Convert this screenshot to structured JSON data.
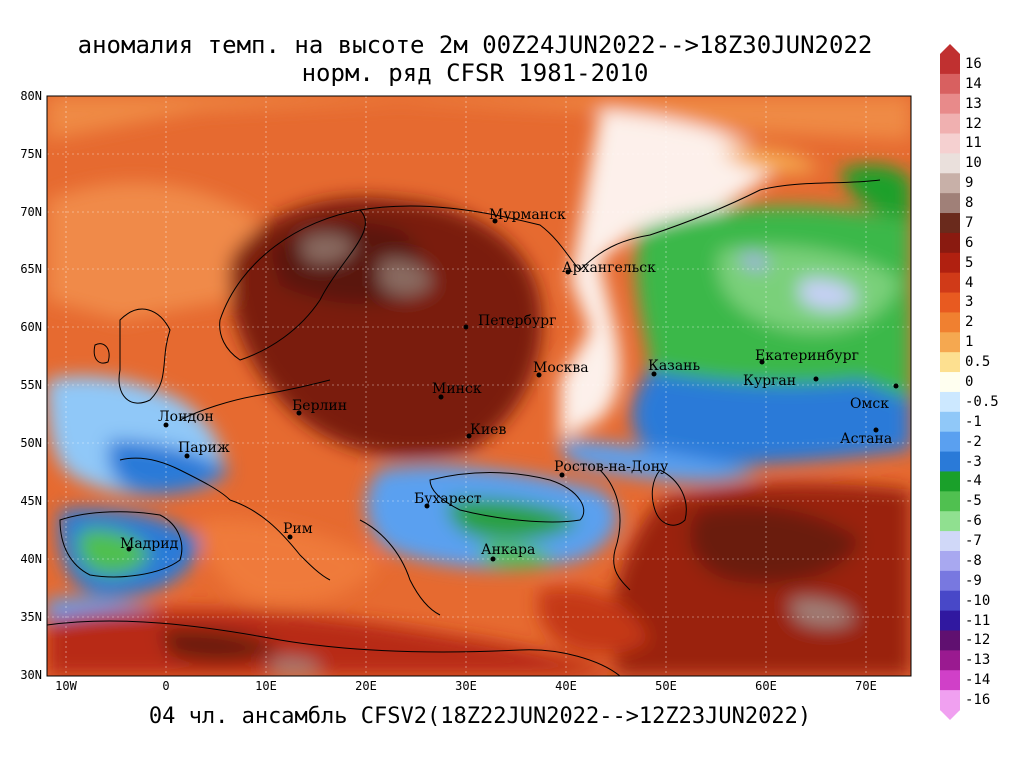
{
  "title_line1": "аномалия темп. на высоте 2м 00Z24JUN2022-->18Z30JUN2022",
  "title_line2": "норм. ряд CFSR 1981-2010",
  "footer": "04 чл. ансамбль CFSV2(18Z22JUN2022-->12Z23JUN2022)",
  "lat_labels": [
    "80N",
    "75N",
    "70N",
    "65N",
    "60N",
    "55N",
    "50N",
    "45N",
    "40N",
    "35N",
    "30N"
  ],
  "lon_labels": [
    "10W",
    "0",
    "10E",
    "20E",
    "30E",
    "40E",
    "50E",
    "60E",
    "70E"
  ],
  "cities": [
    {
      "name": "Мурманск"
    },
    {
      "name": "Архангельск"
    },
    {
      "name": "Петербург"
    },
    {
      "name": "Москва"
    },
    {
      "name": "Казань"
    },
    {
      "name": "Екатеринбург"
    },
    {
      "name": "Курган"
    },
    {
      "name": "Омск"
    },
    {
      "name": "Астана"
    },
    {
      "name": "Лондон"
    },
    {
      "name": "Париж"
    },
    {
      "name": "Берлин"
    },
    {
      "name": "Минск"
    },
    {
      "name": "Киев"
    },
    {
      "name": "Ростов-на-Дону"
    },
    {
      "name": "Бухарест"
    },
    {
      "name": "Рим"
    },
    {
      "name": "Мадрид"
    },
    {
      "name": "Анкара"
    }
  ],
  "legend": {
    "labels": [
      "16",
      "14",
      "13",
      "12",
      "11",
      "10",
      "9",
      "8",
      "7",
      "6",
      "5",
      "4",
      "3",
      "2",
      "1",
      "0.5",
      "0",
      "-0.5",
      "-1",
      "-2",
      "-3",
      "-4",
      "-5",
      "-6",
      "-7",
      "-8",
      "-9",
      "-10",
      "-11",
      "-12",
      "-13",
      "-14",
      "-16"
    ],
    "colors": [
      "#c03030",
      "#d86060",
      "#e88a8a",
      "#f0b0b0",
      "#f5d0d0",
      "#eae0dc",
      "#c8b0a8",
      "#a08078",
      "#6a2a1c",
      "#8a1a10",
      "#b02010",
      "#d03a18",
      "#e85a20",
      "#f08030",
      "#f5a850",
      "#fde090",
      "#fffff0",
      "#cce8ff",
      "#90c8f8",
      "#5aa0f0",
      "#2a7ad8",
      "#1aa02a",
      "#50c050",
      "#90e090",
      "#d0d8f8",
      "#a8a8f0",
      "#7878e0",
      "#4848c8",
      "#3018a0",
      "#601070",
      "#9a1a90",
      "#d040c8",
      "#f0a0f0"
    ]
  },
  "colors": {
    "ocean_anomaly": "#e87840",
    "strong_warm": "#8a1a10",
    "cold": "#2a7ad8",
    "very_cold": "#1aa02a"
  }
}
